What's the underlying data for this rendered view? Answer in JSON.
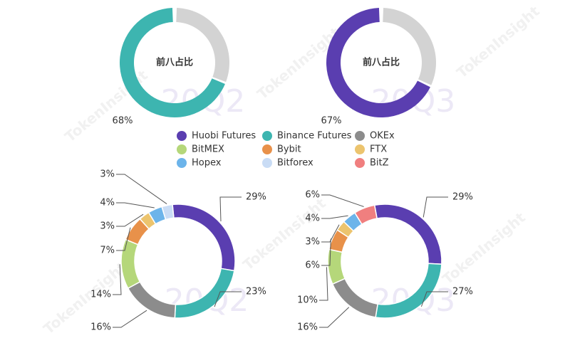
{
  "watermark": "TokenInsight",
  "legend": {
    "names": [
      "Huobi Futures",
      "Binance Futures",
      "OKEx",
      "BitMEX",
      "Bybit",
      "FTX",
      "Hopex",
      "Bitforex",
      "BitZ"
    ],
    "colors": [
      "#5a3eb0",
      "#3db5b0",
      "#8c8c8c",
      "#b5d77a",
      "#e8914a",
      "#ecc46e",
      "#6cb4ea",
      "#c9dcf5",
      "#f07f7f"
    ]
  },
  "chart_data": [
    {
      "type": "donut",
      "center_label": "前八占比",
      "period": "20Q2",
      "values": [
        68,
        32
      ],
      "value_labels": [
        "68%",
        null
      ],
      "colors": [
        "#3db5b0",
        "#d3d3d3"
      ]
    },
    {
      "type": "donut",
      "center_label": "前八占比",
      "period": "20Q3",
      "values": [
        67,
        33
      ],
      "value_labels": [
        "67%",
        null
      ],
      "colors": [
        "#5a3eb0",
        "#d3d3d3"
      ]
    },
    {
      "type": "donut",
      "period": "20Q2",
      "values": [
        29,
        23,
        16,
        14,
        7,
        3,
        4,
        3,
        null
      ],
      "value_labels": [
        "29%",
        "23%",
        "16%",
        "14%",
        "7%",
        "3%",
        "4%",
        "3%",
        null
      ]
    },
    {
      "type": "donut",
      "period": "20Q3",
      "values": [
        29,
        27,
        16,
        10,
        6,
        3,
        4,
        null,
        6
      ],
      "value_labels": [
        "29%",
        "27%",
        "16%",
        "10%",
        "6%",
        "3%",
        "4%",
        null,
        "6%"
      ]
    }
  ]
}
